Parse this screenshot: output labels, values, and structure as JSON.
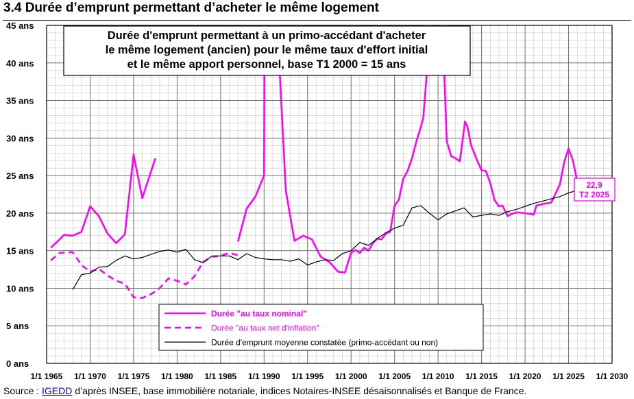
{
  "page": {
    "title": "3.4 Durée d’emprunt permettant d’acheter le même logement",
    "source_prefix": "Source : ",
    "source_link": "IGEDD",
    "source_suffix": " d’après INSEE, base immobilière notariale, indices Notaires-INSEE désaisonnalisés et Banque de France."
  },
  "chart_data": {
    "type": "line",
    "title": "Durée d'emprunt permettant à un primo-accédant d'acheter le même logement (ancien) pour le même taux d'effort initial et le même apport personnel, base T1 2000 = 15 ans",
    "title_lines": [
      "Durée d'emprunt permettant à un primo-accédant d'acheter",
      "le même logement (ancien) pour le même taux d'effort initial",
      "et le même apport personnel, base T1 2000 = 15 ans"
    ],
    "xlim": [
      1965,
      2030
    ],
    "ylim": [
      0,
      45
    ],
    "x_ticks": [
      1965,
      1970,
      1975,
      1980,
      1985,
      1990,
      1995,
      2000,
      2005,
      2010,
      2015,
      2020,
      2025,
      2030
    ],
    "x_tick_labels": [
      "1/1 1965",
      "1/1 1970",
      "1/1 1975",
      "1/1 1980",
      "1/1 1985",
      "1/1 1990",
      "1/1 1995",
      "1/1 2000",
      "1/1 2005",
      "1/1 2010",
      "1/1 2015",
      "1/1 2020",
      "1/1 2025",
      "1/1 2030"
    ],
    "y_ticks": [
      0,
      5,
      10,
      15,
      20,
      25,
      30,
      35,
      40,
      45
    ],
    "y_tick_labels": [
      "0 ans",
      "5 ans",
      "10 ans",
      "15 ans",
      "20 ans",
      "25 ans",
      "30 ans",
      "35 ans",
      "40 ans",
      "45 ans"
    ],
    "grid": true,
    "legend_position": "bottom-center",
    "series": [
      {
        "name": "Durée \"au taux nominal\"",
        "color": "#ff00ff",
        "style": "solid-thick",
        "segments": [
          [
            [
              1965.5,
              15.4
            ],
            [
              1966.5,
              16.5
            ],
            [
              1967,
              17.1
            ],
            [
              1968,
              17.0
            ],
            [
              1969,
              17.5
            ],
            [
              1970,
              20.9
            ],
            [
              1971,
              19.6
            ],
            [
              1972,
              17.3
            ],
            [
              1973,
              16.0
            ],
            [
              1974,
              17.2
            ],
            [
              1975,
              27.8
            ],
            [
              1976,
              22.0
            ],
            [
              1977.5,
              27.3
            ]
          ],
          [
            [
              1987,
              16.2
            ],
            [
              1988,
              20.6
            ],
            [
              1989,
              22.2
            ],
            [
              1990,
              25.0
            ],
            [
              1990.05,
              45.5
            ]
          ],
          [
            [
              1991.5,
              45.5
            ],
            [
              1992.5,
              23.0
            ],
            [
              1993.5,
              16.3
            ],
            [
              1994.5,
              17.0
            ],
            [
              1995.5,
              16.5
            ],
            [
              1996.5,
              14.2
            ],
            [
              1997.5,
              13.5
            ],
            [
              1998.5,
              12.2
            ],
            [
              1999.3,
              12.1
            ],
            [
              2000,
              14.7
            ],
            [
              2000.5,
              15.1
            ],
            [
              2001,
              14.7
            ],
            [
              2001.5,
              15.4
            ],
            [
              2002,
              15.0
            ],
            [
              2002.5,
              16.0
            ],
            [
              2003,
              16.6
            ],
            [
              2003.5,
              16.5
            ],
            [
              2004,
              17.3
            ],
            [
              2004.5,
              17.5
            ],
            [
              2005,
              21.0
            ],
            [
              2005.5,
              21.8
            ],
            [
              2006,
              24.6
            ],
            [
              2006.5,
              25.6
            ],
            [
              2007,
              27.3
            ],
            [
              2007.5,
              29.5
            ],
            [
              2008,
              31.4
            ],
            [
              2008.3,
              32.7
            ],
            [
              2008.7,
              38.6
            ],
            [
              2009,
              45.5
            ]
          ],
          [
            [
              2010.5,
              45.5
            ],
            [
              2011,
              29.6
            ],
            [
              2011.5,
              27.6
            ],
            [
              2012,
              27.3
            ],
            [
              2012.5,
              26.9
            ],
            [
              2013.1,
              32.2
            ],
            [
              2013.4,
              31.4
            ],
            [
              2013.8,
              29.0
            ],
            [
              2014.5,
              27.0
            ],
            [
              2015,
              25.7
            ],
            [
              2015.5,
              25.6
            ],
            [
              2016,
              24.0
            ],
            [
              2016.5,
              21.7
            ],
            [
              2017,
              20.9
            ],
            [
              2017.4,
              21.0
            ],
            [
              2018,
              19.6
            ],
            [
              2018.5,
              19.9
            ],
            [
              2019,
              20.1
            ],
            [
              2020,
              20.0
            ],
            [
              2021,
              19.8
            ],
            [
              2021.3,
              21.0
            ],
            [
              2022,
              21.2
            ],
            [
              2023,
              21.4
            ],
            [
              2024,
              23.8
            ],
            [
              2024.5,
              26.8
            ],
            [
              2025,
              28.6
            ],
            [
              2025.5,
              27.0
            ],
            [
              2026,
              24.2
            ],
            [
              2026.5,
              23.6
            ],
            [
              2027,
              22.9
            ]
          ]
        ]
      },
      {
        "name": "Durée \"au taux net d'inflation\"",
        "color": "#ff00ff",
        "style": "dashed",
        "segments": [
          [
            [
              1965.5,
              13.7
            ],
            [
              1966.5,
              14.7
            ],
            [
              1967.5,
              14.8
            ],
            [
              1968,
              14.8
            ],
            [
              1969,
              13.1
            ],
            [
              1970,
              12.2
            ],
            [
              1971,
              12.6
            ],
            [
              1972,
              11.7
            ],
            [
              1973,
              11.0
            ],
            [
              1974,
              10.6
            ],
            [
              1975,
              8.8
            ],
            [
              1976,
              8.7
            ],
            [
              1977,
              9.2
            ],
            [
              1978,
              10.0
            ],
            [
              1979,
              11.3
            ],
            [
              1980,
              11.0
            ],
            [
              1981,
              10.5
            ],
            [
              1982,
              11.6
            ],
            [
              1983,
              13.5
            ],
            [
              1984,
              14.2
            ],
            [
              1985,
              14.3
            ],
            [
              1986,
              14.7
            ],
            [
              1987,
              14.4
            ]
          ]
        ]
      },
      {
        "name": "Durée d'emprunt moyenne constatée (primo-accédant ou non)",
        "color": "#000000",
        "style": "solid-thin",
        "segments": [
          [
            [
              1968,
              9.8
            ],
            [
              1969,
              11.8
            ],
            [
              1970,
              12.0
            ],
            [
              1971,
              12.8
            ],
            [
              1972,
              12.9
            ],
            [
              1973,
              13.7
            ],
            [
              1974,
              14.3
            ],
            [
              1975,
              13.9
            ],
            [
              1976,
              14.1
            ],
            [
              1977,
              14.5
            ],
            [
              1978,
              14.9
            ],
            [
              1979,
              15.1
            ],
            [
              1980,
              14.8
            ],
            [
              1981,
              15.2
            ],
            [
              1982,
              13.8
            ],
            [
              1983,
              13.4
            ],
            [
              1984,
              14.3
            ],
            [
              1985,
              14.3
            ],
            [
              1986,
              14.3
            ],
            [
              1987,
              13.8
            ],
            [
              1988,
              14.6
            ],
            [
              1989,
              14.1
            ],
            [
              1990,
              13.9
            ],
            [
              1991,
              13.8
            ],
            [
              1992,
              13.8
            ],
            [
              1993,
              13.6
            ],
            [
              1994,
              13.9
            ],
            [
              1995,
              13.1
            ],
            [
              1996,
              13.5
            ],
            [
              1997,
              13.8
            ],
            [
              1998,
              13.7
            ],
            [
              1999,
              14.6
            ],
            [
              2000,
              15.0
            ],
            [
              2001,
              16.1
            ],
            [
              2002,
              15.7
            ],
            [
              2003,
              16.6
            ],
            [
              2004,
              17.4
            ],
            [
              2005,
              18.0
            ],
            [
              2006,
              18.4
            ],
            [
              2007,
              20.7
            ],
            [
              2008,
              21.0
            ],
            [
              2009,
              20.0
            ],
            [
              2010,
              19.1
            ],
            [
              2011,
              19.9
            ],
            [
              2012,
              20.3
            ],
            [
              2013,
              20.7
            ],
            [
              2014,
              19.5
            ],
            [
              2015,
              19.7
            ],
            [
              2016,
              19.9
            ],
            [
              2017,
              19.7
            ],
            [
              2018,
              20.2
            ],
            [
              2019,
              20.5
            ],
            [
              2020,
              20.9
            ],
            [
              2021,
              21.3
            ],
            [
              2022,
              21.6
            ],
            [
              2023,
              21.9
            ],
            [
              2024,
              22.2
            ],
            [
              2025,
              22.7
            ],
            [
              2026,
              23.0
            ],
            [
              2026.5,
              22.9
            ],
            [
              2027,
              22.9
            ]
          ]
        ]
      }
    ],
    "annotation": {
      "lines": [
        "22,9",
        "T2 2025"
      ],
      "color": "#ff00ff",
      "x": 2027,
      "y": 22.9
    }
  }
}
